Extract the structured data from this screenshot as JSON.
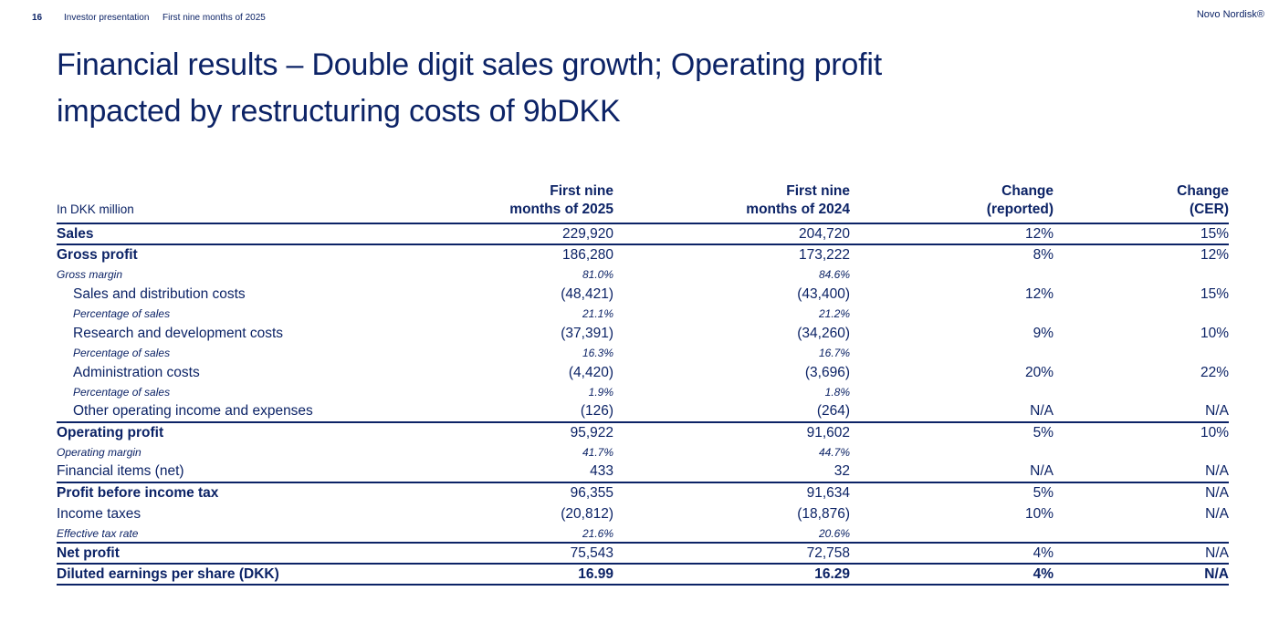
{
  "meta": {
    "page_number": "16",
    "doc_title": "Investor presentation",
    "doc_subtitle": "First nine months of 2025",
    "brand": "Novo Nordisk®"
  },
  "title": {
    "line1": "Financial results – Double digit sales growth; Operating profit",
    "line2": "impacted by restructuring costs of 9bDKK"
  },
  "colors": {
    "primary_navy": "#0c2366"
  },
  "table": {
    "unit_label": "In DKK million",
    "columns": [
      {
        "line1": "First nine",
        "line2": "months of 2025"
      },
      {
        "line1": "First nine",
        "line2": "months of 2024"
      },
      {
        "line1": "Change",
        "line2": "(reported)"
      },
      {
        "line1": "Change",
        "line2": "(CER)"
      }
    ],
    "rows": [
      {
        "label": "Sales",
        "v2025": "229,920",
        "v2024": "204,720",
        "chg_reported": "12%",
        "chg_cer": "15%",
        "bold": true,
        "rule": true
      },
      {
        "label": "Gross profit",
        "v2025": "186,280",
        "v2024": "173,222",
        "chg_reported": "8%",
        "chg_cer": "12%",
        "bold": true
      },
      {
        "label": "Gross margin",
        "v2025": "81.0%",
        "v2024": "84.6%",
        "chg_reported": "",
        "chg_cer": "",
        "sub": true
      },
      {
        "label": "Sales and distribution costs",
        "v2025": "(48,421)",
        "v2024": "(43,400)",
        "chg_reported": "12%",
        "chg_cer": "15%",
        "indent": true
      },
      {
        "label": "Percentage of sales",
        "v2025": "21.1%",
        "v2024": "21.2%",
        "chg_reported": "",
        "chg_cer": "",
        "sub": true,
        "indent": true
      },
      {
        "label": "Research and development costs",
        "v2025": "(37,391)",
        "v2024": "(34,260)",
        "chg_reported": "9%",
        "chg_cer": "10%",
        "indent": true
      },
      {
        "label": "Percentage of sales",
        "v2025": "16.3%",
        "v2024": "16.7%",
        "chg_reported": "",
        "chg_cer": "",
        "sub": true,
        "indent": true
      },
      {
        "label": "Administration costs",
        "v2025": "(4,420)",
        "v2024": "(3,696)",
        "chg_reported": "20%",
        "chg_cer": "22%",
        "indent": true
      },
      {
        "label": "Percentage of sales",
        "v2025": "1.9%",
        "v2024": "1.8%",
        "chg_reported": "",
        "chg_cer": "",
        "sub": true,
        "indent": true
      },
      {
        "label": "Other operating income and expenses",
        "v2025": "(126)",
        "v2024": "(264)",
        "chg_reported": "N/A",
        "chg_cer": "N/A",
        "indent": true,
        "rule": true
      },
      {
        "label": "Operating profit",
        "v2025": "95,922",
        "v2024": "91,602",
        "chg_reported": "5%",
        "chg_cer": "10%",
        "bold": true
      },
      {
        "label": "Operating margin",
        "v2025": "41.7%",
        "v2024": "44.7%",
        "chg_reported": "",
        "chg_cer": "",
        "sub": true
      },
      {
        "label": "Financial items (net)",
        "v2025": "433",
        "v2024": "32",
        "chg_reported": "N/A",
        "chg_cer": "N/A",
        "rule": true
      },
      {
        "label": "Profit before income tax",
        "v2025": "96,355",
        "v2024": "91,634",
        "chg_reported": "5%",
        "chg_cer": "N/A",
        "bold": true
      },
      {
        "label": "Income taxes",
        "v2025": "(20,812)",
        "v2024": "(18,876)",
        "chg_reported": "10%",
        "chg_cer": "N/A"
      },
      {
        "label": "Effective tax rate",
        "v2025": "21.6%",
        "v2024": "20.6%",
        "chg_reported": "",
        "chg_cer": "",
        "sub": true,
        "rule": true
      },
      {
        "label": "Net profit",
        "v2025": "75,543",
        "v2024": "72,758",
        "chg_reported": "4%",
        "chg_cer": "N/A",
        "bold": true,
        "rule": true
      },
      {
        "label": "Diluted earnings per share (DKK)",
        "v2025": "16.99",
        "v2024": "16.29",
        "chg_reported": "4%",
        "chg_cer": "N/A",
        "bold": true,
        "bold_values": true,
        "rule": true
      }
    ]
  }
}
